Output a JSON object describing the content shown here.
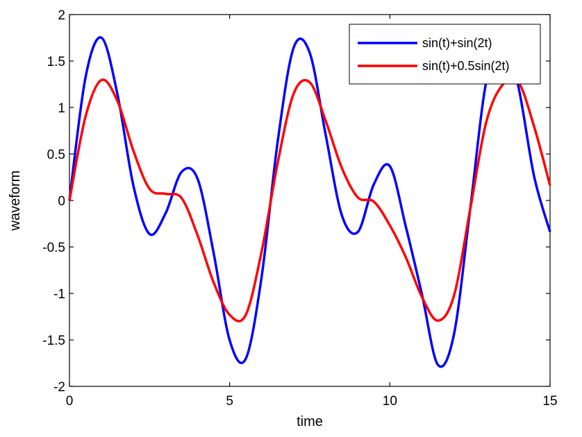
{
  "chart_data": {
    "type": "line",
    "title": "",
    "xlabel": "time",
    "ylabel": "waveform",
    "xlim": [
      0,
      15
    ],
    "ylim": [
      -2,
      2
    ],
    "xticks": [
      0,
      5,
      10,
      15
    ],
    "yticks": [
      -2,
      -1.5,
      -1,
      -0.5,
      0,
      0.5,
      1,
      1.5,
      2
    ],
    "grid": false,
    "legend_position": "top-right",
    "x": [
      0,
      0.5,
      1,
      1.5,
      2,
      2.5,
      3,
      3.5,
      4,
      4.5,
      5,
      5.5,
      6,
      6.5,
      7,
      7.5,
      8,
      8.5,
      9,
      9.5,
      10,
      10.5,
      11,
      11.5,
      12,
      12.5,
      13,
      13.5,
      14,
      14.5,
      15
    ],
    "series": [
      {
        "name": "sin(t)+sin(2t)",
        "color": "#0000ff",
        "values": [
          0,
          1.321,
          1.751,
          1.139,
          0.153,
          -0.361,
          -0.138,
          0.307,
          0.232,
          -0.565,
          -1.503,
          -1.705,
          -0.816,
          0.635,
          1.647,
          1.588,
          0.701,
          -0.157,
          -0.339,
          0.174,
          0.369,
          -0.284,
          -1.008,
          -1.768,
          -1.442,
          -0.115,
          1.264,
          1.741,
          1.243,
          0.263,
          -0.338
        ]
      },
      {
        "name": "sin(t)+0.5sin(2t)",
        "color": "#ff0000",
        "values": [
          0,
          0.9,
          1.296,
          1.068,
          0.531,
          0.125,
          0.071,
          0.026,
          -0.376,
          -0.882,
          -1.231,
          -1.233,
          -0.545,
          0.407,
          1.151,
          1.271,
          0.854,
          0.351,
          0.033,
          -0.013,
          -0.268,
          -0.613,
          -1.038,
          -1.293,
          -1.026,
          -0.109,
          0.832,
          1.236,
          1.281,
          0.798,
          0.161
        ]
      }
    ]
  }
}
